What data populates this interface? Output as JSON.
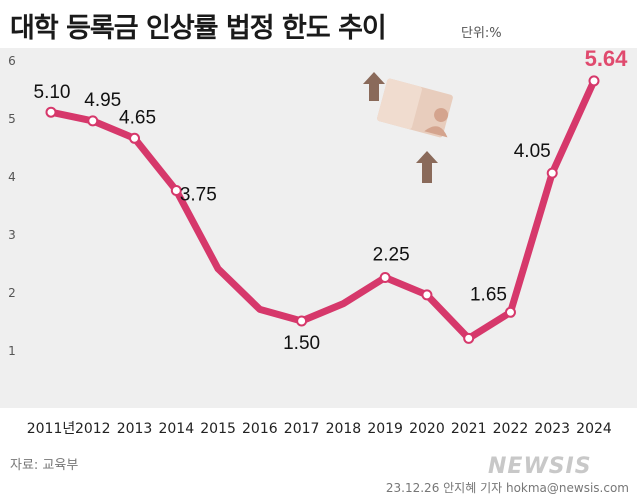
{
  "header": {
    "title": "대학 등록금 인상률 법정 한도 추이",
    "unit": "단위:%"
  },
  "footer": {
    "source": "자료: 교육부",
    "credit": "23.12.26 안지혜 기자 hokma@newsis.com",
    "logo": "NEWSIS"
  },
  "colors": {
    "line": "#d6386b",
    "highlight": "#e04a6e",
    "background": "#efefef",
    "axis_text": "#222222",
    "ytick_text": "#555555",
    "illustration_arrow": "#8a6a5a",
    "illustration_card": "#e8cdbd"
  },
  "chart_data": {
    "type": "line",
    "title": "대학 등록금 인상률 법정 한도 추이",
    "unit": "단위:%",
    "ylim": [
      0,
      6
    ],
    "yticks": [
      "1",
      "2",
      "3",
      "4",
      "5",
      "6"
    ],
    "categories": [
      "2011년",
      "2012",
      "2013",
      "2014",
      "2015",
      "2016",
      "2017",
      "2018",
      "2019",
      "2020",
      "2021",
      "2022",
      "2023",
      "2024"
    ],
    "series": [
      {
        "values": [
          5.1,
          4.95,
          4.65,
          3.75,
          2.4,
          1.7,
          1.5,
          1.8,
          2.25,
          1.95,
          1.2,
          1.65,
          4.05,
          5.64
        ]
      }
    ],
    "markers": [
      true,
      true,
      true,
      true,
      false,
      false,
      true,
      false,
      true,
      true,
      true,
      true,
      true,
      true
    ],
    "data_labels": [
      {
        "index": 0,
        "text": "5.10"
      },
      {
        "index": 1,
        "text": "4.95"
      },
      {
        "index": 2,
        "text": "4.65"
      },
      {
        "index": 3,
        "text": "3.75"
      },
      {
        "index": 6,
        "text": "1.50"
      },
      {
        "index": 8,
        "text": "2.25"
      },
      {
        "index": 11,
        "text": "1.65"
      },
      {
        "index": 12,
        "text": "4.05"
      },
      {
        "index": 13,
        "text": "5.64"
      }
    ],
    "grid": false,
    "legend": "none"
  }
}
